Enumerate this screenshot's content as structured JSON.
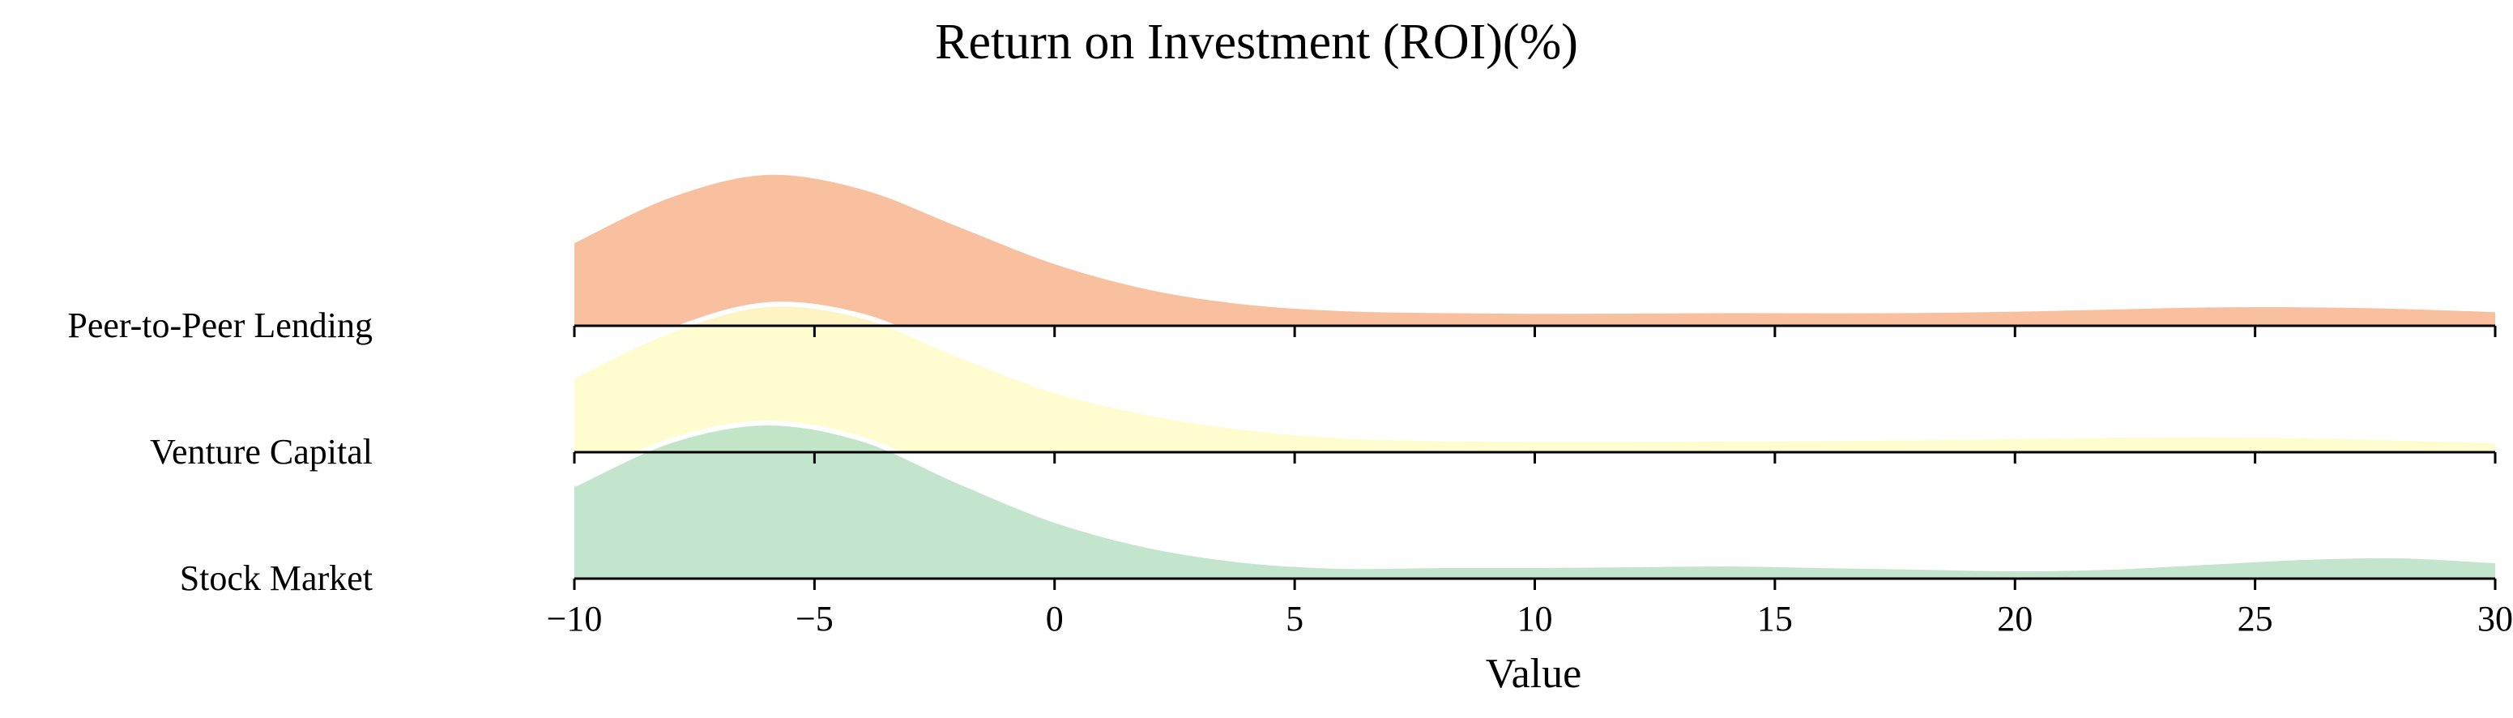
{
  "chart_data": {
    "type": "area",
    "title": "Return on Investment (ROI)(%)",
    "xlabel": "Value",
    "ylabel": "",
    "xlim": [
      -10,
      30
    ],
    "xticks": [
      -10,
      -5,
      0,
      5,
      10,
      15,
      20,
      25,
      30
    ],
    "xtick_labels": [
      "−10",
      "−5",
      "0",
      "5",
      "10",
      "15",
      "20",
      "25",
      "30"
    ],
    "grid": false,
    "legend": "none",
    "categories": [
      "Peer-to-Peer Lending",
      "Venture Capital",
      "Stock Market"
    ],
    "x": [
      -10,
      -8,
      -6,
      -4,
      -2,
      0,
      2,
      4,
      6,
      8,
      10,
      12,
      14,
      16,
      18,
      20,
      22,
      24,
      26,
      28,
      30
    ],
    "series": [
      {
        "name": "Peer-to-Peer Lending",
        "color": "#f7b58e",
        "values": [
          0.51,
          0.79,
          0.93,
          0.84,
          0.61,
          0.38,
          0.22,
          0.13,
          0.09,
          0.078,
          0.074,
          0.075,
          0.078,
          0.077,
          0.079,
          0.087,
          0.1,
          0.113,
          0.114,
          0.104,
          0.084
        ]
      },
      {
        "name": "Venture Capital",
        "color": "#fffbc8",
        "values": [
          0.47,
          0.75,
          0.91,
          0.84,
          0.6,
          0.38,
          0.24,
          0.15,
          0.1,
          0.083,
          0.078,
          0.079,
          0.082,
          0.084,
          0.088,
          0.096,
          0.104,
          0.107,
          0.102,
          0.087,
          0.07
        ]
      },
      {
        "name": "Stock Market",
        "color": "#b8e0c6",
        "values": [
          0.58,
          0.85,
          0.96,
          0.86,
          0.6,
          0.36,
          0.2,
          0.11,
          0.075,
          0.08,
          0.08,
          0.085,
          0.09,
          0.08,
          0.07,
          0.06,
          0.07,
          0.1,
          0.13,
          0.14,
          0.11
        ]
      }
    ]
  }
}
